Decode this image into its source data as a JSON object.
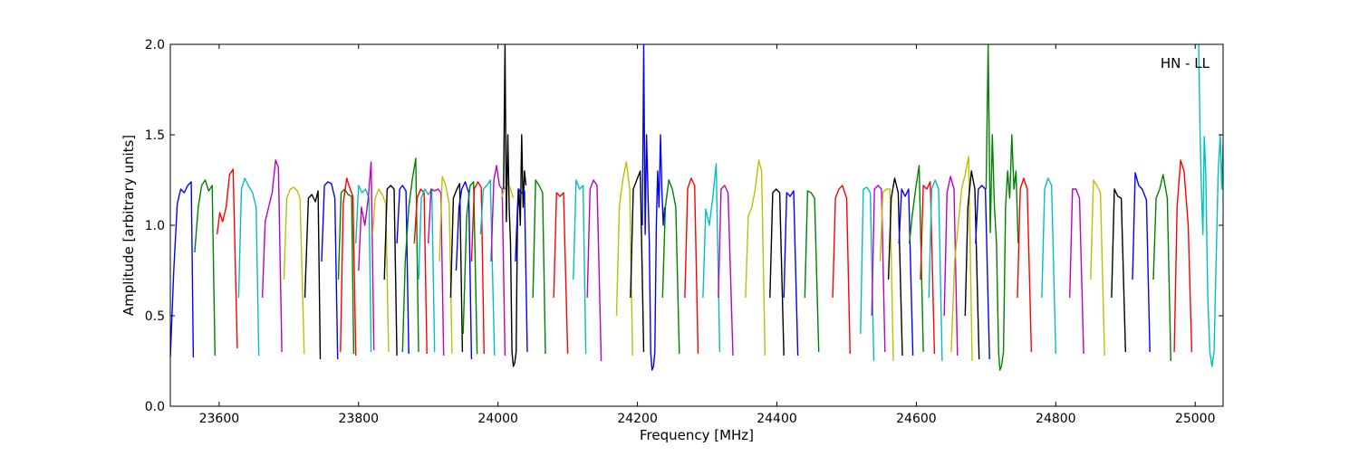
{
  "chart_data": {
    "type": "line",
    "title": "",
    "xlabel": "Frequency [MHz]",
    "ylabel": "Amplitude [arbitrary units]",
    "annotation": "HN - LL",
    "xlim": [
      23530,
      25040
    ],
    "ylim": [
      0.0,
      2.0
    ],
    "xticks": [
      23600,
      23800,
      24000,
      24200,
      24400,
      24600,
      24800,
      25000
    ],
    "xtick_labels": [
      "23600",
      "23800",
      "24000",
      "24200",
      "24400",
      "24600",
      "24800",
      "25000"
    ],
    "yticks": [
      0.0,
      0.5,
      1.0,
      1.5,
      2.0
    ],
    "ytick_labels": [
      "0.0",
      "0.5",
      "1.0",
      "1.5",
      "2.0"
    ],
    "grid": false,
    "legend": "none",
    "color_cycle": [
      "#0000ff",
      "#008000",
      "#ff0000",
      "#00bfbf",
      "#bf00bf",
      "#bfbf00",
      "#000000"
    ],
    "segments": [
      {
        "x": [
          23530,
          23535,
          23540,
          23545,
          23550,
          23555,
          23560,
          23563
        ],
        "y": [
          0.27,
          0.75,
          1.12,
          1.2,
          1.18,
          1.22,
          1.24,
          0.27
        ]
      },
      {
        "x": [
          23565,
          23570,
          23575,
          23580,
          23585,
          23590,
          23594
        ],
        "y": [
          0.85,
          1.1,
          1.22,
          1.25,
          1.19,
          1.22,
          0.28
        ]
      },
      {
        "x": [
          23597,
          23601,
          23605,
          23610,
          23615,
          23620,
          23626
        ],
        "y": [
          0.95,
          1.07,
          1.02,
          1.1,
          1.28,
          1.31,
          0.32
        ]
      },
      {
        "x": [
          23628,
          23632,
          23637,
          23642,
          23648,
          23653,
          23657
        ],
        "y": [
          0.6,
          1.2,
          1.26,
          1.22,
          1.18,
          1.1,
          0.28
        ]
      },
      {
        "x": [
          23662,
          23666,
          23671,
          23676,
          23681,
          23685,
          23690
        ],
        "y": [
          0.6,
          1.02,
          1.1,
          1.18,
          1.36,
          1.32,
          0.3
        ]
      },
      {
        "x": [
          23693,
          23697,
          23702,
          23707,
          23712,
          23716,
          23722
        ],
        "y": [
          0.7,
          1.15,
          1.2,
          1.21,
          1.19,
          1.15,
          0.29
        ]
      },
      {
        "x": [
          23723,
          23728,
          23733,
          23738,
          23742,
          23745
        ],
        "y": [
          0.6,
          1.15,
          1.17,
          1.13,
          1.19,
          0.26
        ]
      },
      {
        "x": [
          23747,
          23751,
          23756,
          23761,
          23766,
          23770
        ],
        "y": [
          0.8,
          1.22,
          1.24,
          1.23,
          1.15,
          0.26
        ]
      },
      {
        "x": [
          23771,
          23775,
          23780,
          23785,
          23790,
          23793
        ],
        "y": [
          0.7,
          1.18,
          1.2,
          1.17,
          1.16,
          0.29
        ]
      },
      {
        "x": [
          23774,
          23778,
          23783,
          23788,
          23792,
          23796
        ],
        "y": [
          0.3,
          1.12,
          1.26,
          1.2,
          1.16,
          0.28
        ]
      },
      {
        "x": [
          23796,
          23800,
          23805,
          23810,
          23815,
          23818
        ],
        "y": [
          0.9,
          1.22,
          1.18,
          1.2,
          1.15,
          0.3
        ]
      },
      {
        "x": [
          23800,
          23804,
          23809,
          23814,
          23818,
          23822
        ],
        "y": [
          0.75,
          1.1,
          1.0,
          1.15,
          1.35,
          0.31
        ]
      },
      {
        "x": [
          23820,
          23824,
          23829,
          23834,
          23839,
          23843
        ],
        "y": [
          0.95,
          1.15,
          1.2,
          1.17,
          1.12,
          0.3
        ]
      },
      {
        "x": [
          23837,
          23841,
          23846,
          23851,
          23855
        ],
        "y": [
          0.7,
          1.2,
          1.22,
          1.2,
          0.28
        ]
      },
      {
        "x": [
          23855,
          23859,
          23863,
          23868,
          23872
        ],
        "y": [
          0.9,
          1.2,
          1.22,
          1.19,
          0.29
        ]
      },
      {
        "x": [
          23863,
          23867,
          23872,
          23877,
          23882,
          23886
        ],
        "y": [
          0.3,
          0.8,
          1.1,
          1.25,
          1.37,
          0.3
        ]
      },
      {
        "x": [
          23880,
          23884,
          23889,
          23894,
          23898
        ],
        "y": [
          0.9,
          1.15,
          1.2,
          1.18,
          0.29
        ]
      },
      {
        "x": [
          23886,
          23890,
          23895,
          23900,
          23905,
          23909
        ],
        "y": [
          0.7,
          1.15,
          1.2,
          1.17,
          1.2,
          0.3
        ]
      },
      {
        "x": [
          23900,
          23904,
          23909,
          23914,
          23918,
          23922
        ],
        "y": [
          0.9,
          1.2,
          1.19,
          1.2,
          1.18,
          0.28
        ]
      },
      {
        "x": [
          23916,
          23920,
          23925,
          23930,
          23934
        ],
        "y": [
          0.8,
          1.27,
          1.22,
          1.12,
          0.29
        ]
      },
      {
        "x": [
          23932,
          23936,
          23941,
          23945,
          23949
        ],
        "y": [
          0.6,
          1.15,
          1.2,
          1.23,
          0.3
        ]
      },
      {
        "x": [
          23940,
          23944,
          23948,
          23953,
          23958,
          23962
        ],
        "y": [
          0.75,
          1.1,
          1.2,
          1.24,
          1.18,
          0.26
        ]
      },
      {
        "x": [
          23950,
          23955,
          23960,
          23965,
          23970
        ],
        "y": [
          0.4,
          1.05,
          1.22,
          1.24,
          0.29
        ]
      },
      {
        "x": [
          23962,
          23966,
          23971,
          23976,
          23980
        ],
        "y": [
          0.8,
          1.2,
          1.24,
          1.21,
          0.29
        ]
      },
      {
        "x": [
          23975,
          23979,
          23984,
          23989,
          23995
        ],
        "y": [
          0.95,
          1.2,
          1.22,
          1.25,
          0.28
        ]
      },
      {
        "x": [
          23990,
          23994,
          23998,
          24002,
          24006,
          24010
        ],
        "y": [
          0.8,
          1.25,
          1.33,
          1.22,
          1.2,
          0.28
        ]
      },
      {
        "x": [
          24005,
          24009,
          24014,
          24018,
          24022
        ],
        "y": [
          1.15,
          1.2,
          1.23,
          1.2,
          1.15
        ]
      },
      {
        "x": [
          24008,
          24010,
          24012,
          24014,
          24016,
          24018,
          24020,
          24022,
          24024,
          24026,
          24028,
          24030,
          24032,
          24034,
          24036,
          24038,
          24040
        ],
        "y": [
          1.2,
          2.0,
          1.02,
          1.5,
          1.1,
          0.9,
          0.3,
          0.22,
          0.24,
          0.3,
          1.05,
          1.2,
          1.0,
          1.5,
          1.1,
          1.3,
          1.22
        ]
      },
      {
        "x": [
          24025,
          24029,
          24034,
          24038,
          24042
        ],
        "y": [
          0.8,
          1.2,
          1.18,
          1.19,
          0.3
        ]
      },
      {
        "x": [
          24050,
          24054,
          24059,
          24064,
          24068
        ],
        "y": [
          0.6,
          1.25,
          1.22,
          1.18,
          0.29
        ]
      },
      {
        "x": [
          24080,
          24084,
          24089,
          24094,
          24100
        ],
        "y": [
          0.6,
          1.18,
          1.16,
          1.18,
          0.29
        ]
      },
      {
        "x": [
          24108,
          24112,
          24117,
          24122,
          24126
        ],
        "y": [
          0.7,
          1.25,
          1.2,
          1.22,
          0.29
        ]
      },
      {
        "x": [
          24128,
          24132,
          24137,
          24142,
          24148
        ],
        "y": [
          0.6,
          1.2,
          1.25,
          1.22,
          0.25
        ]
      },
      {
        "x": [
          24170,
          24174,
          24179,
          24184,
          24189,
          24193
        ],
        "y": [
          0.5,
          1.1,
          1.25,
          1.35,
          1.2,
          0.28
        ]
      },
      {
        "x": [
          24190,
          24194,
          24199,
          24204,
          24209
        ],
        "y": [
          0.6,
          1.2,
          1.25,
          1.3,
          0.3
        ]
      },
      {
        "x": [
          24207,
          24209,
          24211,
          24213,
          24215,
          24217,
          24219,
          24221,
          24223,
          24225,
          24227,
          24229,
          24231,
          24233,
          24235,
          24237,
          24239
        ],
        "y": [
          1.0,
          2.0,
          0.95,
          1.5,
          1.2,
          0.9,
          0.3,
          0.2,
          0.22,
          0.3,
          1.0,
          1.3,
          1.1,
          1.5,
          1.2,
          1.0,
          1.1
        ]
      },
      {
        "x": [
          24236,
          24240,
          24245,
          24250,
          24255,
          24260
        ],
        "y": [
          0.6,
          1.1,
          1.25,
          1.2,
          1.1,
          0.29
        ]
      },
      {
        "x": [
          24268,
          24272,
          24277,
          24282,
          24287
        ],
        "y": [
          0.6,
          1.2,
          1.26,
          1.22,
          0.29
        ]
      },
      {
        "x": [
          24294,
          24298,
          24303,
          24308,
          24313,
          24318
        ],
        "y": [
          0.6,
          1.09,
          1.0,
          1.15,
          1.34,
          0.3
        ]
      },
      {
        "x": [
          24316,
          24320,
          24325,
          24330,
          24337
        ],
        "y": [
          0.6,
          1.2,
          1.22,
          1.18,
          0.28
        ]
      },
      {
        "x": [
          24355,
          24359,
          24364,
          24369,
          24374,
          24378,
          24383
        ],
        "y": [
          0.6,
          1.05,
          1.1,
          1.2,
          1.36,
          1.3,
          0.28
        ]
      },
      {
        "x": [
          24390,
          24394,
          24399,
          24404,
          24410
        ],
        "y": [
          0.6,
          1.18,
          1.2,
          1.18,
          0.28
        ]
      },
      {
        "x": [
          24410,
          24414,
          24419,
          24424,
          24430
        ],
        "y": [
          0.6,
          1.18,
          1.16,
          1.19,
          0.28
        ]
      },
      {
        "x": [
          24440,
          24444,
          24449,
          24454,
          24460
        ],
        "y": [
          0.6,
          1.19,
          1.18,
          1.15,
          0.3
        ]
      },
      {
        "x": [
          24480,
          24484,
          24489,
          24494,
          24500,
          24505
        ],
        "y": [
          0.6,
          1.15,
          1.2,
          1.22,
          1.15,
          0.29
        ]
      },
      {
        "x": [
          24520,
          24524,
          24529,
          24534,
          24539
        ],
        "y": [
          0.4,
          1.2,
          1.21,
          1.18,
          0.25
        ]
      },
      {
        "x": [
          24536,
          24540,
          24545,
          24550,
          24555
        ],
        "y": [
          0.5,
          1.2,
          1.22,
          1.2,
          0.3
        ]
      },
      {
        "x": [
          24548,
          24552,
          24557,
          24562,
          24567
        ],
        "y": [
          0.8,
          1.18,
          1.2,
          1.2,
          0.25
        ]
      },
      {
        "x": [
          24560,
          24564,
          24569,
          24574,
          24580
        ],
        "y": [
          0.7,
          1.15,
          1.26,
          1.18,
          0.28
        ]
      },
      {
        "x": [
          24575,
          24579,
          24584,
          24589,
          24595
        ],
        "y": [
          0.9,
          1.2,
          1.16,
          1.2,
          0.28
        ]
      },
      {
        "x": [
          24590,
          24594,
          24599,
          24604,
          24610
        ],
        "y": [
          0.9,
          1.05,
          1.2,
          1.33,
          0.3
        ]
      },
      {
        "x": [
          24606,
          24610,
          24615,
          24620,
          24626
        ],
        "y": [
          0.7,
          1.22,
          1.2,
          1.24,
          0.29
        ]
      },
      {
        "x": [
          24618,
          24622,
          24627,
          24632,
          24637
        ],
        "y": [
          0.6,
          1.2,
          1.25,
          1.2,
          0.25
        ]
      },
      {
        "x": [
          24640,
          24644,
          24649,
          24654,
          24659
        ],
        "y": [
          0.5,
          1.18,
          1.27,
          1.2,
          0.28
        ]
      },
      {
        "x": [
          24650,
          24655,
          24660,
          24665,
          24670,
          24675,
          24680
        ],
        "y": [
          0.3,
          0.8,
          1.0,
          1.2,
          1.28,
          1.38,
          0.25
        ]
      },
      {
        "x": [
          24670,
          24674,
          24679,
          24684,
          24690
        ],
        "y": [
          0.5,
          1.1,
          1.3,
          1.2,
          0.26
        ]
      },
      {
        "x": [
          24685,
          24689,
          24694,
          24699,
          24705
        ],
        "y": [
          0.9,
          1.2,
          1.22,
          1.2,
          0.26
        ]
      },
      {
        "x": [
          24700,
          24703,
          24706,
          24709,
          24712,
          24715,
          24718,
          24720,
          24722,
          24725,
          24728,
          24731,
          24734,
          24737,
          24740,
          24743,
          24746
        ],
        "y": [
          1.2,
          2.0,
          0.96,
          1.5,
          1.1,
          0.9,
          0.3,
          0.2,
          0.22,
          0.3,
          1.1,
          1.3,
          1.15,
          1.5,
          1.2,
          1.3,
          0.9
        ]
      },
      {
        "x": [
          24745,
          24749,
          24754,
          24759,
          24765
        ],
        "y": [
          0.6,
          1.2,
          1.26,
          1.2,
          0.3
        ]
      },
      {
        "x": [
          24780,
          24784,
          24789,
          24794,
          24800
        ],
        "y": [
          0.6,
          1.2,
          1.26,
          1.22,
          0.29
        ]
      },
      {
        "x": [
          24820,
          24824,
          24829,
          24834,
          24840
        ],
        "y": [
          0.6,
          1.2,
          1.2,
          1.15,
          0.29
        ]
      },
      {
        "x": [
          24850,
          24854,
          24859,
          24864,
          24870
        ],
        "y": [
          0.7,
          1.25,
          1.22,
          1.18,
          0.28
        ]
      },
      {
        "x": [
          24880,
          24884,
          24889,
          24894,
          24900
        ],
        "y": [
          0.6,
          1.2,
          1.16,
          1.15,
          0.3
        ]
      },
      {
        "x": [
          24910,
          24914,
          24919,
          24924,
          24930,
          24935
        ],
        "y": [
          0.7,
          1.29,
          1.22,
          1.2,
          1.14,
          0.3
        ]
      },
      {
        "x": [
          24940,
          24944,
          24949,
          24954,
          24960,
          24965
        ],
        "y": [
          0.7,
          1.15,
          1.2,
          1.28,
          1.15,
          0.25
        ]
      },
      {
        "x": [
          24970,
          24974,
          24979,
          24984,
          24990,
          24995
        ],
        "y": [
          0.3,
          1.1,
          1.36,
          1.3,
          1.0,
          0.3
        ]
      },
      {
        "x": [
          25005,
          25007,
          25009,
          25011,
          25013,
          25015,
          25018,
          25021,
          25024,
          25027,
          25030,
          25033,
          25036,
          25038,
          25040
        ],
        "y": [
          2.0,
          1.5,
          1.2,
          0.95,
          1.49,
          1.3,
          0.6,
          0.3,
          0.22,
          0.3,
          0.8,
          1.3,
          1.5,
          1.2,
          1.45
        ]
      }
    ]
  }
}
